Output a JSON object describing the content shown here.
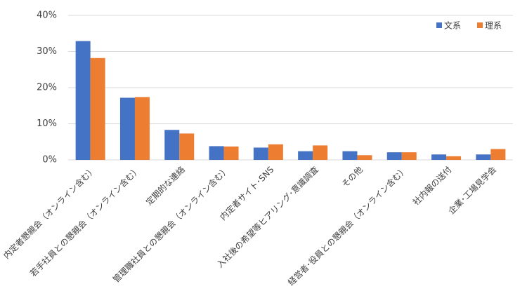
{
  "chart_data": {
    "type": "bar",
    "categories": [
      "内定者懇親会（オンライン含む）",
      "若手社員との懇親会（オンライン含む）",
      "定期的な連絡",
      "管理職社員との懇親会（オンライン含む）",
      "内定者サイト･SNS",
      "入社後の希望等ヒアリング･意識調査",
      "その他",
      "経営者･役員との懇親会（オンライン含む）",
      "社内報の送付",
      "企業･工場見学会"
    ],
    "series": [
      {
        "name": "文系",
        "color": "#4472c4",
        "values": [
          32.9,
          17.2,
          8.3,
          3.8,
          3.4,
          2.4,
          2.4,
          2.1,
          1.5,
          1.5
        ]
      },
      {
        "name": "理系",
        "color": "#ed7d31",
        "values": [
          28.2,
          17.4,
          7.3,
          3.7,
          4.3,
          4.0,
          1.3,
          2.1,
          1.0,
          3.0
        ]
      }
    ],
    "ylim": [
      0,
      40
    ],
    "yticks": [
      {
        "value": 0,
        "label": "0%"
      },
      {
        "value": 10,
        "label": "10%"
      },
      {
        "value": 20,
        "label": "20%"
      },
      {
        "value": 30,
        "label": "30%"
      },
      {
        "value": 40,
        "label": "40%"
      }
    ],
    "grid": true,
    "legend": "top-right"
  }
}
